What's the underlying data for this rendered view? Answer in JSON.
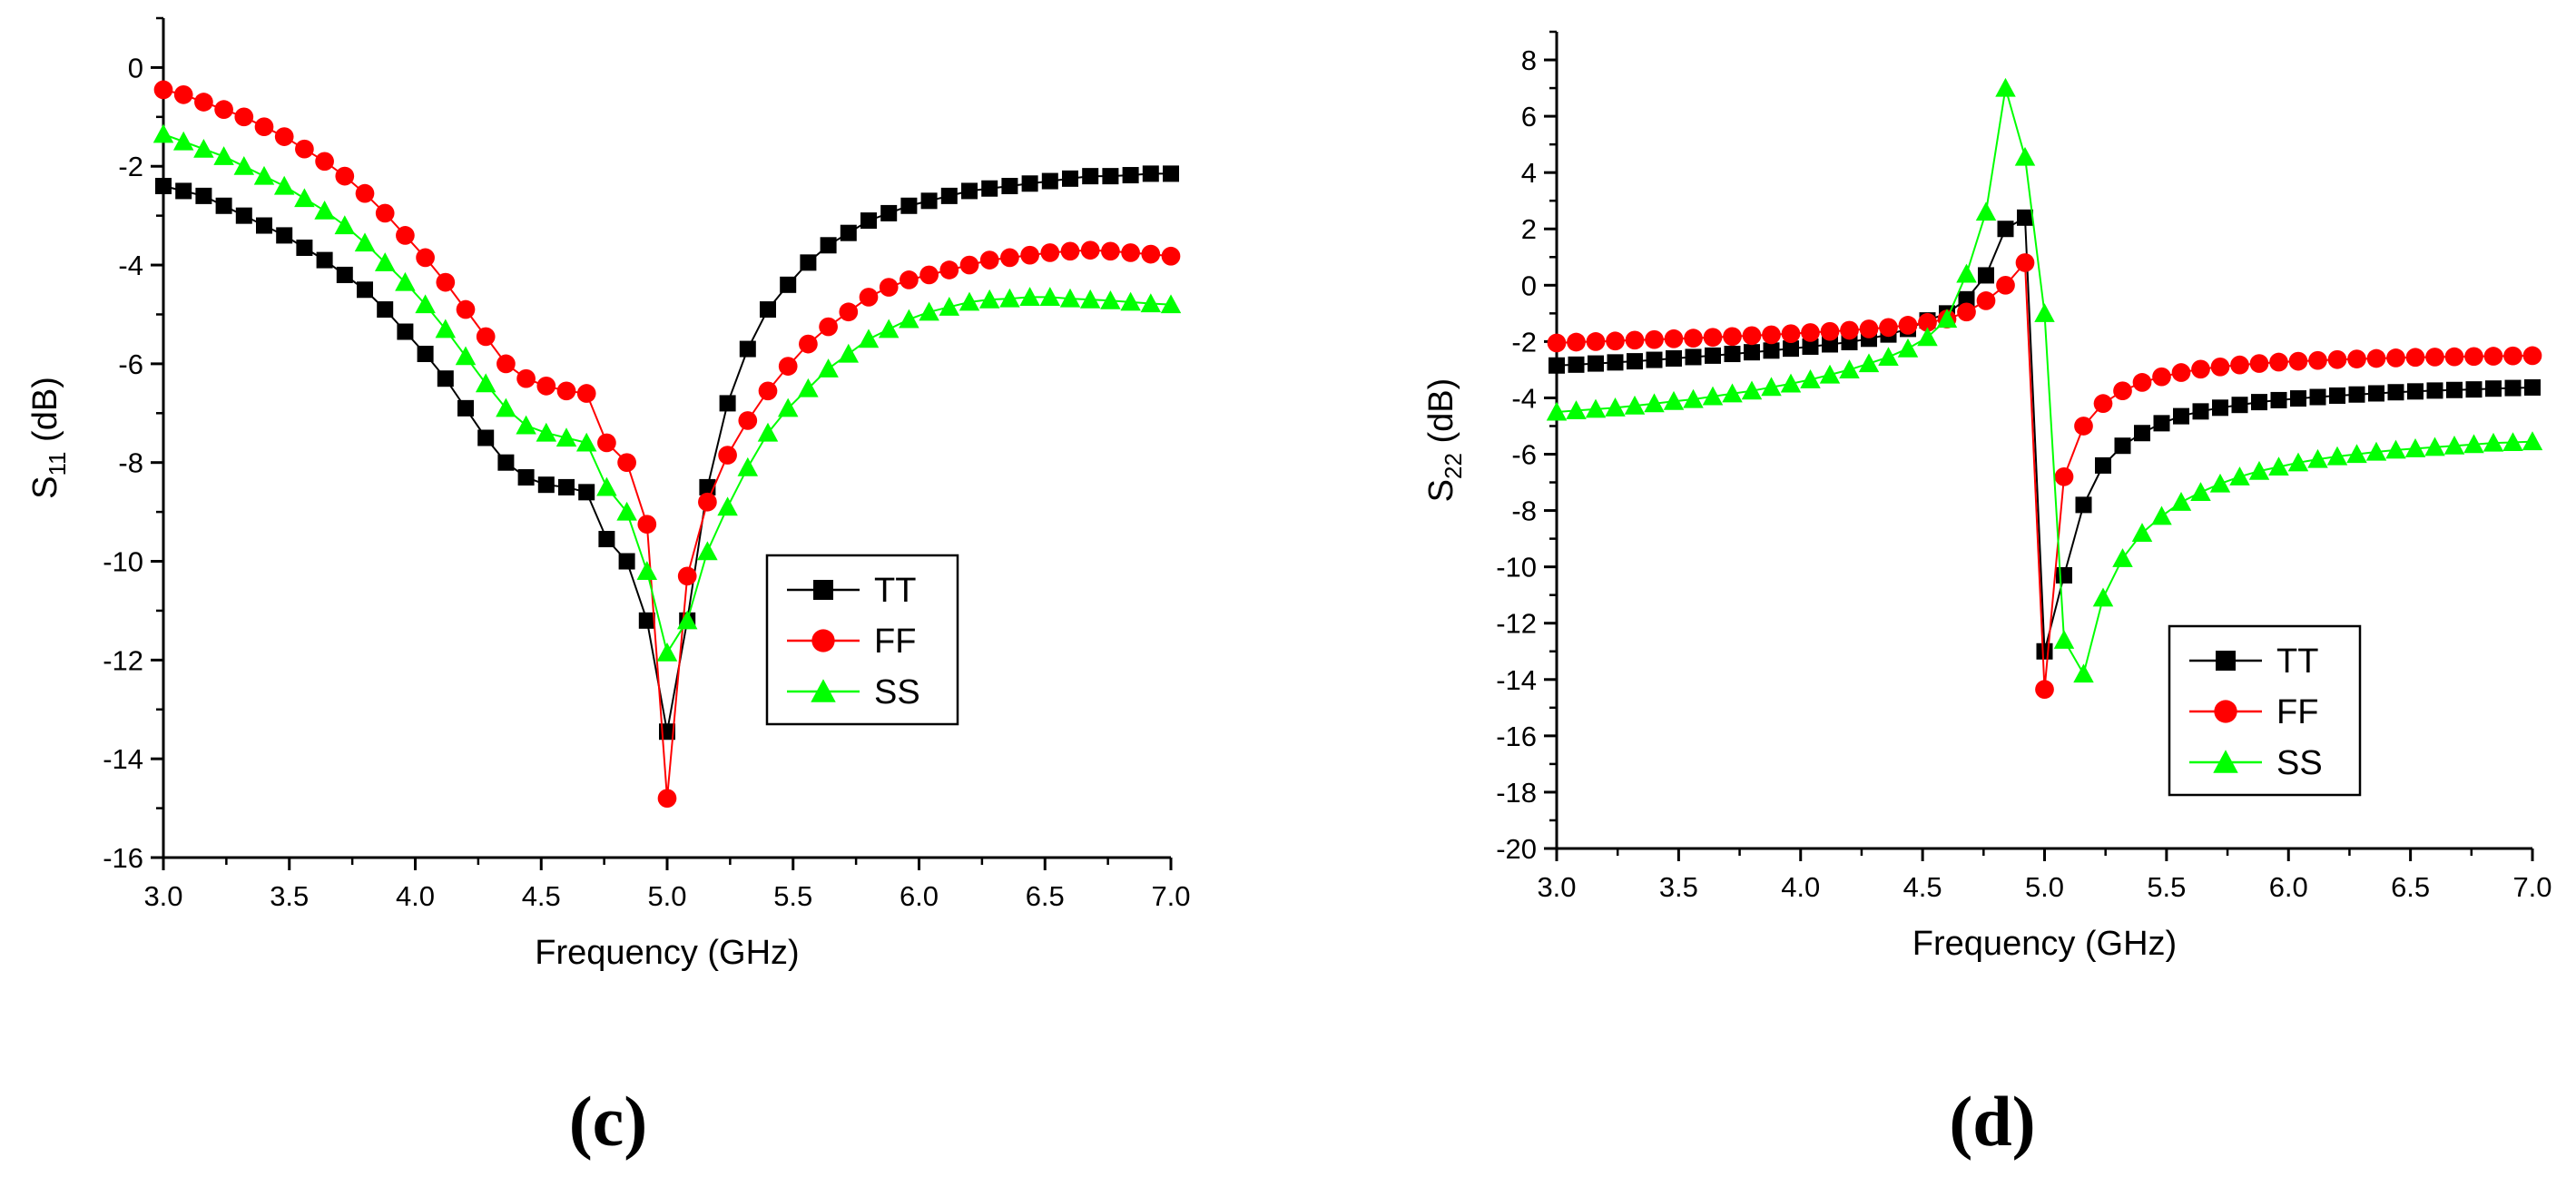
{
  "chart_data": [
    {
      "type": "line",
      "panel_label": "(c)",
      "title": "",
      "xlabel": "Frequency (GHz)",
      "ylabel_main": "S",
      "ylabel_sub": "11",
      "ylabel_unit": " (dB)",
      "xlim": [
        3.0,
        7.0
      ],
      "ylim": [
        -16,
        1
      ],
      "x_ticks": [
        "3.0",
        "3.5",
        "4.0",
        "4.5",
        "5.0",
        "5.5",
        "6.0",
        "6.5",
        "7.0"
      ],
      "y_ticks": [
        "0",
        "-2",
        "-4",
        "-6",
        "-8",
        "-10",
        "-12",
        "-14",
        "-16"
      ],
      "legend_position": "center-right",
      "series": [
        {
          "name": "TT",
          "color": "#000000",
          "marker": "square",
          "x": [
            3.0,
            3.08,
            3.16,
            3.24,
            3.32,
            3.4,
            3.48,
            3.56,
            3.64,
            3.72,
            3.8,
            3.88,
            3.96,
            4.04,
            4.12,
            4.2,
            4.28,
            4.36,
            4.44,
            4.52,
            4.6,
            4.68,
            4.76,
            4.84,
            4.92,
            5.0,
            5.08,
            5.16,
            5.24,
            5.32,
            5.4,
            5.48,
            5.56,
            5.64,
            5.72,
            5.8,
            5.88,
            5.96,
            6.04,
            6.12,
            6.2,
            6.28,
            6.36,
            6.44,
            6.52,
            6.6,
            6.68,
            6.76,
            6.84,
            6.92,
            7.0
          ],
          "y": [
            -2.4,
            -2.5,
            -2.6,
            -2.8,
            -3.0,
            -3.2,
            -3.4,
            -3.65,
            -3.9,
            -4.2,
            -4.5,
            -4.9,
            -5.35,
            -5.8,
            -6.3,
            -6.9,
            -7.5,
            -8.0,
            -8.3,
            -8.45,
            -8.5,
            -8.6,
            -9.55,
            -10.0,
            -11.2,
            -13.45,
            -11.2,
            -8.5,
            -6.8,
            -5.7,
            -4.9,
            -4.4,
            -3.95,
            -3.6,
            -3.35,
            -3.1,
            -2.95,
            -2.8,
            -2.7,
            -2.6,
            -2.5,
            -2.45,
            -2.4,
            -2.35,
            -2.3,
            -2.25,
            -2.2,
            -2.2,
            -2.18,
            -2.15,
            -2.15
          ]
        },
        {
          "name": "FF",
          "color": "#ff0000",
          "marker": "circle",
          "x": [
            3.0,
            3.08,
            3.16,
            3.24,
            3.32,
            3.4,
            3.48,
            3.56,
            3.64,
            3.72,
            3.8,
            3.88,
            3.96,
            4.04,
            4.12,
            4.2,
            4.28,
            4.36,
            4.44,
            4.52,
            4.6,
            4.68,
            4.76,
            4.84,
            4.92,
            5.0,
            5.08,
            5.16,
            5.24,
            5.32,
            5.4,
            5.48,
            5.56,
            5.64,
            5.72,
            5.8,
            5.88,
            5.96,
            6.04,
            6.12,
            6.2,
            6.28,
            6.36,
            6.44,
            6.52,
            6.6,
            6.68,
            6.76,
            6.84,
            6.92,
            7.0
          ],
          "y": [
            -0.45,
            -0.55,
            -0.7,
            -0.85,
            -1.0,
            -1.2,
            -1.4,
            -1.65,
            -1.9,
            -2.2,
            -2.55,
            -2.95,
            -3.4,
            -3.85,
            -4.35,
            -4.9,
            -5.45,
            -6.0,
            -6.3,
            -6.45,
            -6.55,
            -6.6,
            -7.6,
            -8.0,
            -9.25,
            -14.8,
            -10.3,
            -8.8,
            -7.85,
            -7.15,
            -6.55,
            -6.05,
            -5.6,
            -5.25,
            -4.95,
            -4.65,
            -4.45,
            -4.3,
            -4.2,
            -4.1,
            -4.0,
            -3.9,
            -3.85,
            -3.8,
            -3.75,
            -3.72,
            -3.7,
            -3.72,
            -3.75,
            -3.78,
            -3.82
          ]
        },
        {
          "name": "SS",
          "color": "#00ff00",
          "marker": "triangle",
          "x": [
            3.0,
            3.08,
            3.16,
            3.24,
            3.32,
            3.4,
            3.48,
            3.56,
            3.64,
            3.72,
            3.8,
            3.88,
            3.96,
            4.04,
            4.12,
            4.2,
            4.28,
            4.36,
            4.44,
            4.52,
            4.6,
            4.68,
            4.76,
            4.84,
            4.92,
            5.0,
            5.08,
            5.16,
            5.24,
            5.32,
            5.4,
            5.48,
            5.56,
            5.64,
            5.72,
            5.8,
            5.88,
            5.96,
            6.04,
            6.12,
            6.2,
            6.28,
            6.36,
            6.44,
            6.52,
            6.6,
            6.68,
            6.76,
            6.84,
            6.92,
            7.0
          ],
          "y": [
            -1.35,
            -1.5,
            -1.65,
            -1.8,
            -2.0,
            -2.2,
            -2.4,
            -2.65,
            -2.9,
            -3.2,
            -3.55,
            -3.95,
            -4.35,
            -4.8,
            -5.3,
            -5.85,
            -6.4,
            -6.9,
            -7.25,
            -7.4,
            -7.5,
            -7.6,
            -8.5,
            -9.0,
            -10.2,
            -11.85,
            -11.2,
            -9.8,
            -8.9,
            -8.1,
            -7.4,
            -6.9,
            -6.5,
            -6.1,
            -5.8,
            -5.5,
            -5.3,
            -5.1,
            -4.95,
            -4.85,
            -4.75,
            -4.7,
            -4.68,
            -4.65,
            -4.65,
            -4.68,
            -4.7,
            -4.72,
            -4.75,
            -4.78,
            -4.8
          ]
        }
      ]
    },
    {
      "type": "line",
      "panel_label": "(d)",
      "title": "",
      "xlabel": "Frequency (GHz)",
      "ylabel_main": "S",
      "ylabel_sub": "22",
      "ylabel_unit": " (dB)",
      "xlim": [
        3.0,
        7.0
      ],
      "ylim": [
        -20,
        9
      ],
      "x_ticks": [
        "3.0",
        "3.5",
        "4.0",
        "4.5",
        "5.0",
        "5.5",
        "6.0",
        "6.5",
        "7.0"
      ],
      "y_ticks": [
        "8",
        "6",
        "4",
        "2",
        "0",
        "-2",
        "-4",
        "-6",
        "-8",
        "-10",
        "-12",
        "-14",
        "-16",
        "-18",
        "-20"
      ],
      "legend_position": "center-right",
      "series": [
        {
          "name": "TT",
          "color": "#000000",
          "marker": "square",
          "x": [
            3.0,
            3.08,
            3.16,
            3.24,
            3.32,
            3.4,
            3.48,
            3.56,
            3.64,
            3.72,
            3.8,
            3.88,
            3.96,
            4.04,
            4.12,
            4.2,
            4.28,
            4.36,
            4.44,
            4.52,
            4.6,
            4.68,
            4.76,
            4.84,
            4.92,
            5.0,
            5.08,
            5.16,
            5.24,
            5.32,
            5.4,
            5.48,
            5.56,
            5.64,
            5.72,
            5.8,
            5.88,
            5.96,
            6.04,
            6.12,
            6.2,
            6.28,
            6.36,
            6.44,
            6.52,
            6.6,
            6.68,
            6.76,
            6.84,
            6.92,
            7.0
          ],
          "y": [
            -2.85,
            -2.82,
            -2.78,
            -2.74,
            -2.7,
            -2.65,
            -2.6,
            -2.55,
            -2.5,
            -2.44,
            -2.38,
            -2.32,
            -2.25,
            -2.18,
            -2.1,
            -2.02,
            -1.9,
            -1.75,
            -1.55,
            -1.25,
            -1.0,
            -0.5,
            0.35,
            2.0,
            2.4,
            -13.0,
            -10.3,
            -7.8,
            -6.4,
            -5.7,
            -5.25,
            -4.9,
            -4.65,
            -4.48,
            -4.35,
            -4.25,
            -4.15,
            -4.08,
            -4.02,
            -3.97,
            -3.92,
            -3.88,
            -3.84,
            -3.8,
            -3.77,
            -3.74,
            -3.72,
            -3.7,
            -3.67,
            -3.65,
            -3.63
          ]
        },
        {
          "name": "FF",
          "color": "#ff0000",
          "marker": "circle",
          "x": [
            3.0,
            3.08,
            3.16,
            3.24,
            3.32,
            3.4,
            3.48,
            3.56,
            3.64,
            3.72,
            3.8,
            3.88,
            3.96,
            4.04,
            4.12,
            4.2,
            4.28,
            4.36,
            4.44,
            4.52,
            4.6,
            4.68,
            4.76,
            4.84,
            4.92,
            5.0,
            5.08,
            5.16,
            5.24,
            5.32,
            5.4,
            5.48,
            5.56,
            5.64,
            5.72,
            5.8,
            5.88,
            5.96,
            6.04,
            6.12,
            6.2,
            6.28,
            6.36,
            6.44,
            6.52,
            6.6,
            6.68,
            6.76,
            6.84,
            6.92,
            7.0
          ],
          "y": [
            -2.05,
            -2.02,
            -2.0,
            -1.98,
            -1.95,
            -1.93,
            -1.9,
            -1.88,
            -1.85,
            -1.82,
            -1.79,
            -1.76,
            -1.72,
            -1.68,
            -1.64,
            -1.6,
            -1.55,
            -1.5,
            -1.42,
            -1.32,
            -1.2,
            -0.95,
            -0.55,
            0.0,
            0.8,
            -14.35,
            -6.8,
            -5.0,
            -4.2,
            -3.75,
            -3.45,
            -3.25,
            -3.1,
            -2.98,
            -2.9,
            -2.83,
            -2.78,
            -2.73,
            -2.7,
            -2.67,
            -2.64,
            -2.62,
            -2.6,
            -2.58,
            -2.56,
            -2.55,
            -2.54,
            -2.53,
            -2.52,
            -2.51,
            -2.5
          ]
        },
        {
          "name": "SS",
          "color": "#00ff00",
          "marker": "triangle",
          "x": [
            3.0,
            3.08,
            3.16,
            3.24,
            3.32,
            3.4,
            3.48,
            3.56,
            3.64,
            3.72,
            3.8,
            3.88,
            3.96,
            4.04,
            4.12,
            4.2,
            4.28,
            4.36,
            4.44,
            4.52,
            4.6,
            4.68,
            4.76,
            4.84,
            4.92,
            5.0,
            5.08,
            5.16,
            5.24,
            5.32,
            5.4,
            5.48,
            5.56,
            5.64,
            5.72,
            5.8,
            5.88,
            5.96,
            6.04,
            6.12,
            6.2,
            6.28,
            6.36,
            6.44,
            6.52,
            6.6,
            6.68,
            6.76,
            6.84,
            6.92,
            7.0
          ],
          "y": [
            -4.5,
            -4.45,
            -4.4,
            -4.35,
            -4.28,
            -4.2,
            -4.12,
            -4.05,
            -3.95,
            -3.85,
            -3.75,
            -3.62,
            -3.5,
            -3.35,
            -3.18,
            -3.0,
            -2.78,
            -2.55,
            -2.25,
            -1.85,
            -1.2,
            0.4,
            2.6,
            7.0,
            4.55,
            -1.0,
            -12.6,
            -13.8,
            -11.1,
            -9.7,
            -8.8,
            -8.2,
            -7.7,
            -7.35,
            -7.05,
            -6.8,
            -6.6,
            -6.45,
            -6.3,
            -6.18,
            -6.08,
            -6.0,
            -5.92,
            -5.85,
            -5.8,
            -5.75,
            -5.7,
            -5.65,
            -5.6,
            -5.58,
            -5.55
          ]
        }
      ]
    }
  ]
}
